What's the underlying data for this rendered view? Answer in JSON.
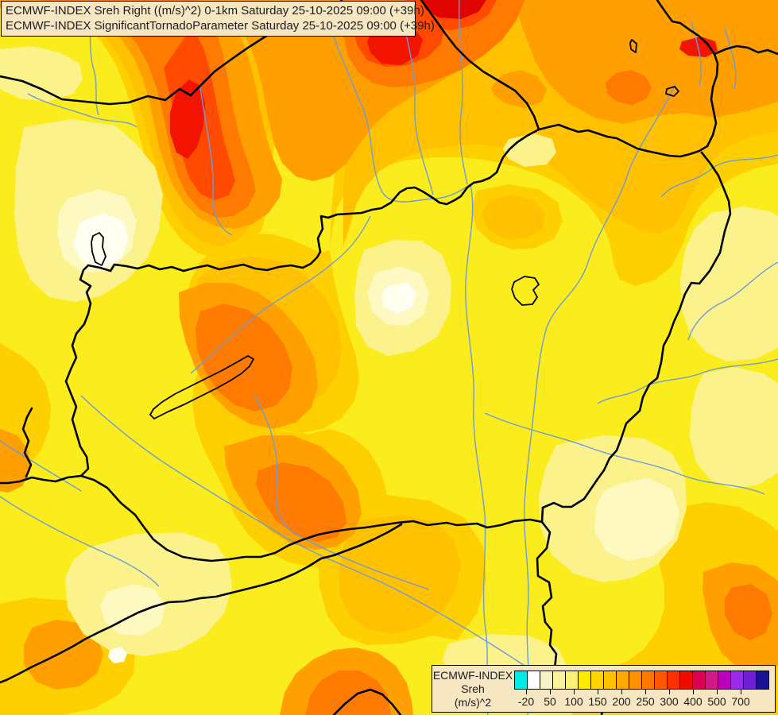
{
  "title_box": {
    "line1": "ECMWF-INDEX Sreh Right ((m/s)^2) 0-1km Saturday 25-10-2025 09:00 (+39h)",
    "line2": "ECMWF-INDEX SignificantTornadoParameter Saturday 25-10-2025 09:00 (+39h)"
  },
  "legend": {
    "title": "ECMWF-INDEX",
    "parameter": "Sreh",
    "units": "(m/s)^2",
    "tick_labels": [
      "-20",
      "50",
      "100",
      "150",
      "200",
      "250",
      "300",
      "400",
      "500",
      "700"
    ],
    "colorbar_colors": [
      "#00E9E9",
      "#FFFFFF",
      "#F7F3C9",
      "#FAF19D",
      "#FBEE79",
      "#FFEC00",
      "#FFD700",
      "#FFC100",
      "#FFAA00",
      "#FF9100",
      "#FF7800",
      "#FF5800",
      "#FF3000",
      "#EF0B00",
      "#DC0050",
      "#D01A85",
      "#BC00BC",
      "#9A2BEC",
      "#6F1FD6",
      "#191293"
    ]
  },
  "map_palette": {
    "base_yellow": "#FBEC1E",
    "gold": "#FFD000",
    "amber": "#FFC100",
    "orange": "#FFA000",
    "deep_orange": "#FF7A00",
    "orange_red": "#FF4A00",
    "red": "#F21300",
    "dark_red": "#DE0400",
    "pale_yellow": "#FBF28C",
    "cream": "#FDF9C0",
    "near_white": "#FFFEF0",
    "river": "#6D9CD6",
    "border": "#000000"
  }
}
